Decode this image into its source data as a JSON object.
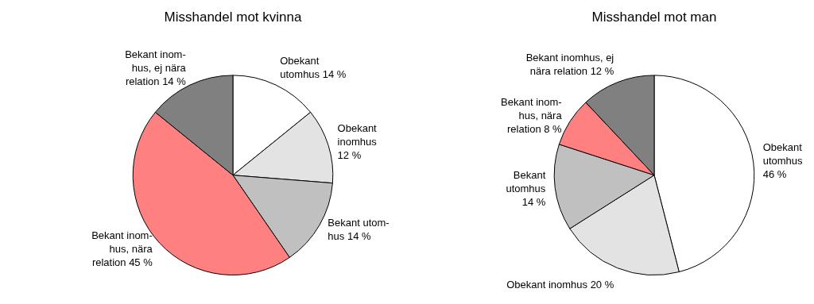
{
  "chart_data": [
    {
      "type": "pie",
      "title": "Misshandel mot kvinna",
      "categories": [
        "Obekant\nutomhus 14 %",
        "Obekant\ninomhus\n12 %",
        "Bekant utom-\nhus 14 %",
        "Bekant inom-\nhus, nära\nrelation 45 %",
        "Bekant inom-\nhus, ej nära\nrelation 14 %"
      ],
      "values": [
        14,
        12,
        14,
        45,
        14
      ],
      "colors": [
        "#ffffff",
        "#e3e3e3",
        "#c0c0c0",
        "#ff8080",
        "#808080"
      ],
      "legend": false
    },
    {
      "type": "pie",
      "title": "Misshandel mot man",
      "categories": [
        "Obekant\nutomhus\n46 %",
        "Obekant inomhus 20 %",
        "Bekant\nutomhus\n14 %",
        "Bekant inom-\nhus, nära\nrelation 8 %",
        "Bekant inomhus, ej\nnära relation 12 %"
      ],
      "values": [
        46,
        20,
        14,
        8,
        12
      ],
      "colors": [
        "#ffffff",
        "#e3e3e3",
        "#c0c0c0",
        "#ff8080",
        "#808080"
      ],
      "legend": false
    }
  ]
}
